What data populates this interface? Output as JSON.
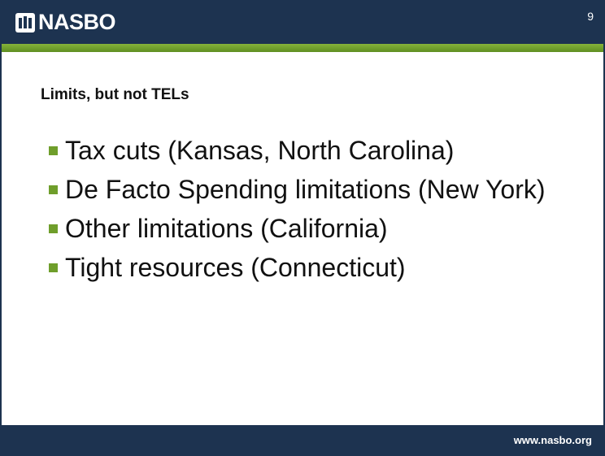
{
  "header": {
    "logo": "NASBO",
    "page_number": "9"
  },
  "title": "Limits, but not TELs",
  "bullets": [
    "Tax cuts (Kansas, North Carolina)",
    "De Facto Spending limitations (New York)",
    "Other limitations (California)",
    "Tight resources (Connecticut)"
  ],
  "footer": {
    "url": "www.nasbo.org"
  }
}
